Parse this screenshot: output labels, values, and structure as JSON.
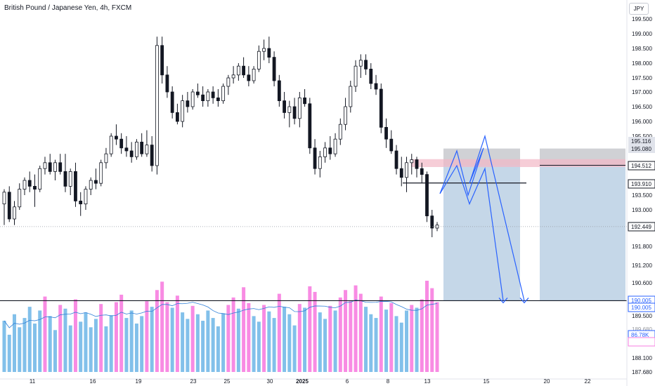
{
  "header": {
    "title": "British Pound / Japanese Yen, 4h, FXCM",
    "currency": "JPY"
  },
  "colors": {
    "up": "#131722",
    "down": "#131722",
    "volume_high": "#f77ee0",
    "volume_low": "#74b9e8",
    "volume_ma": "#2f7fd8",
    "forecast": "#2962ff",
    "zone_stop": "#787b86",
    "zone_target": "#4c84b6",
    "pink_band": "#f2b8c6"
  },
  "chart_data": {
    "type": "candlestick",
    "symbol": "British Pound / Japanese Yen, 4h, FXCM",
    "y_axis": {
      "ticks": [
        199.5,
        199.0,
        198.5,
        198.0,
        197.5,
        197.0,
        196.5,
        196.0,
        195.5,
        193.5,
        193.0,
        191.8,
        191.2,
        190.6,
        189.5,
        188.1,
        187.68
      ],
      "tick_labels": [
        "199.500",
        "199.000",
        "198.500",
        "198.000",
        "197.500",
        "197.000",
        "196.500",
        "196.000",
        "195.500",
        "193.500",
        "193.000",
        "191.800",
        "191.200",
        "190.600",
        "189.500",
        "188.100",
        "187.680"
      ],
      "range": [
        187.68,
        199.9
      ],
      "note_labels": [
        "189.680",
        "188.750"
      ]
    },
    "x_axis": {
      "ticks": [
        {
          "label": "11"
        },
        {
          "label": "16"
        },
        {
          "label": "19"
        },
        {
          "label": "23"
        },
        {
          "label": "25"
        },
        {
          "label": "30"
        },
        {
          "label": "2025",
          "bold": true
        },
        {
          "label": "6"
        },
        {
          "label": "8"
        },
        {
          "label": "13"
        },
        {
          "label": "15"
        },
        {
          "label": "20"
        },
        {
          "label": "22"
        }
      ]
    },
    "price_tags": [
      {
        "value": "195.116",
        "style": "gray"
      },
      {
        "value": "195.080",
        "style": "gray"
      },
      {
        "value": "194.512",
        "style": "dark"
      },
      {
        "value": "193.910",
        "style": "dark"
      },
      {
        "value": "192.449",
        "style": "dark"
      },
      {
        "value": "190.005",
        "style": "blue"
      },
      {
        "value": "190.005",
        "style": "blue"
      },
      {
        "value": "86.78K",
        "style": "blue"
      },
      {
        "value": "",
        "style": "pink"
      }
    ],
    "levels": {
      "current_price": 192.449,
      "resistance": 193.91,
      "target": 190.005,
      "zone_top": 195.08,
      "zone_mid": 194.512
    },
    "forecast_path": [
      193.55,
      195.0,
      193.5,
      195.1,
      193.9,
      195.5,
      190.0
    ],
    "forecast_path_2": [
      193.55,
      194.5,
      193.2,
      194.4,
      190.0
    ],
    "candles": [
      [
        193.2,
        193.7,
        192.5,
        193.6
      ],
      [
        193.6,
        193.8,
        192.6,
        192.7
      ],
      [
        192.7,
        193.3,
        192.5,
        193.1
      ],
      [
        193.1,
        193.9,
        193.0,
        193.7
      ],
      [
        193.7,
        194.1,
        193.5,
        194.0
      ],
      [
        194.0,
        194.3,
        193.6,
        193.8
      ],
      [
        193.8,
        194.2,
        193.1,
        193.7
      ],
      [
        193.7,
        194.5,
        193.6,
        194.4
      ],
      [
        194.4,
        194.8,
        194.2,
        194.6
      ],
      [
        194.6,
        194.9,
        194.2,
        194.3
      ],
      [
        194.3,
        194.7,
        194.0,
        194.6
      ],
      [
        194.6,
        194.9,
        194.2,
        194.3
      ],
      [
        194.3,
        194.9,
        193.6,
        193.8
      ],
      [
        193.8,
        194.4,
        193.5,
        194.3
      ],
      [
        194.3,
        194.6,
        193.1,
        193.3
      ],
      [
        193.3,
        193.6,
        192.8,
        193.2
      ],
      [
        193.2,
        193.8,
        193.0,
        193.7
      ],
      [
        193.7,
        194.1,
        193.5,
        194.0
      ],
      [
        194.0,
        194.4,
        193.7,
        193.9
      ],
      [
        193.9,
        194.7,
        193.8,
        194.6
      ],
      [
        194.6,
        195.1,
        194.4,
        194.9
      ],
      [
        194.9,
        195.6,
        194.8,
        195.5
      ],
      [
        195.5,
        195.9,
        195.2,
        195.4
      ],
      [
        195.4,
        195.6,
        194.9,
        195.1
      ],
      [
        195.1,
        195.5,
        194.8,
        195.0
      ],
      [
        195.0,
        195.3,
        194.6,
        194.8
      ],
      [
        194.8,
        195.4,
        194.7,
        195.3
      ],
      [
        195.3,
        195.6,
        194.8,
        194.9
      ],
      [
        194.9,
        195.7,
        194.8,
        195.2
      ],
      [
        195.2,
        195.5,
        194.3,
        194.5
      ],
      [
        194.5,
        198.9,
        194.2,
        198.6
      ],
      [
        198.6,
        198.9,
        197.3,
        197.6
      ],
      [
        197.6,
        197.9,
        196.8,
        197.0
      ],
      [
        197.0,
        197.2,
        196.1,
        196.3
      ],
      [
        196.3,
        196.6,
        195.9,
        196.0
      ],
      [
        196.0,
        196.9,
        195.8,
        196.7
      ],
      [
        196.7,
        197.0,
        196.3,
        196.5
      ],
      [
        196.5,
        197.1,
        196.4,
        197.0
      ],
      [
        197.0,
        197.3,
        196.8,
        196.9
      ],
      [
        196.9,
        197.2,
        196.5,
        196.7
      ],
      [
        196.7,
        197.1,
        196.5,
        197.0
      ],
      [
        197.0,
        197.2,
        196.6,
        196.8
      ],
      [
        196.8,
        197.1,
        196.5,
        196.7
      ],
      [
        196.7,
        197.3,
        196.6,
        197.2
      ],
      [
        197.2,
        197.6,
        196.9,
        197.5
      ],
      [
        197.5,
        197.9,
        197.3,
        197.6
      ],
      [
        197.6,
        198.0,
        197.4,
        197.9
      ],
      [
        197.9,
        198.2,
        197.5,
        197.6
      ],
      [
        197.6,
        197.9,
        197.2,
        197.4
      ],
      [
        197.4,
        197.9,
        197.3,
        197.8
      ],
      [
        197.8,
        198.6,
        197.7,
        198.4
      ],
      [
        198.4,
        198.8,
        198.1,
        198.5
      ],
      [
        198.5,
        198.9,
        198.0,
        198.2
      ],
      [
        198.2,
        198.4,
        197.2,
        197.4
      ],
      [
        197.4,
        197.6,
        196.5,
        196.7
      ],
      [
        196.7,
        197.0,
        196.1,
        196.3
      ],
      [
        196.3,
        196.7,
        195.8,
        196.5
      ],
      [
        196.5,
        196.8,
        195.9,
        196.1
      ],
      [
        196.1,
        197.0,
        195.8,
        196.8
      ],
      [
        196.8,
        197.1,
        196.5,
        196.6
      ],
      [
        196.6,
        196.8,
        194.9,
        195.1
      ],
      [
        195.1,
        195.4,
        194.2,
        194.4
      ],
      [
        194.4,
        195.0,
        194.1,
        194.8
      ],
      [
        194.8,
        195.3,
        194.6,
        195.1
      ],
      [
        195.1,
        195.5,
        194.7,
        194.9
      ],
      [
        194.9,
        195.6,
        194.8,
        195.4
      ],
      [
        195.4,
        196.1,
        195.2,
        195.9
      ],
      [
        195.9,
        196.8,
        195.7,
        196.5
      ],
      [
        196.5,
        197.4,
        196.3,
        197.2
      ],
      [
        197.2,
        198.1,
        197.0,
        197.9
      ],
      [
        197.9,
        198.3,
        197.5,
        198.1
      ],
      [
        198.1,
        198.3,
        197.6,
        197.8
      ],
      [
        197.8,
        198.0,
        197.1,
        197.3
      ],
      [
        197.3,
        197.6,
        196.9,
        197.1
      ],
      [
        197.1,
        197.3,
        195.6,
        195.8
      ],
      [
        195.8,
        196.1,
        195.1,
        195.4
      ],
      [
        195.4,
        195.7,
        194.9,
        195.0
      ],
      [
        195.0,
        195.2,
        194.2,
        194.4
      ],
      [
        194.4,
        194.8,
        193.8,
        194.1
      ],
      [
        194.1,
        194.8,
        193.6,
        194.6
      ],
      [
        194.6,
        194.9,
        194.2,
        194.7
      ],
      [
        194.7,
        194.8,
        194.1,
        194.4
      ],
      [
        194.4,
        194.6,
        193.9,
        194.2
      ],
      [
        194.2,
        194.3,
        192.6,
        192.8
      ],
      [
        192.8,
        193.0,
        192.1,
        192.4
      ],
      [
        192.4,
        192.6,
        192.3,
        192.5
      ]
    ],
    "volumes": [
      55,
      40,
      62,
      48,
      58,
      70,
      52,
      66,
      81,
      60,
      45,
      72,
      68,
      50,
      78,
      54,
      64,
      48,
      57,
      73,
      49,
      61,
      75,
      83,
      58,
      66,
      52,
      60,
      76,
      70,
      88,
      97,
      75,
      69,
      82,
      64,
      57,
      71,
      62,
      55,
      66,
      58,
      49,
      63,
      72,
      80,
      68,
      91,
      74,
      60,
      54,
      72,
      65,
      58,
      84,
      70,
      62,
      50,
      73,
      69,
      92,
      86,
      64,
      57,
      71,
      66,
      80,
      88,
      76,
      93,
      84,
      70,
      62,
      58,
      81,
      67,
      74,
      60,
      53,
      66,
      72,
      69,
      78,
      98,
      90,
      75
    ],
    "volume_label": "86.78K"
  }
}
